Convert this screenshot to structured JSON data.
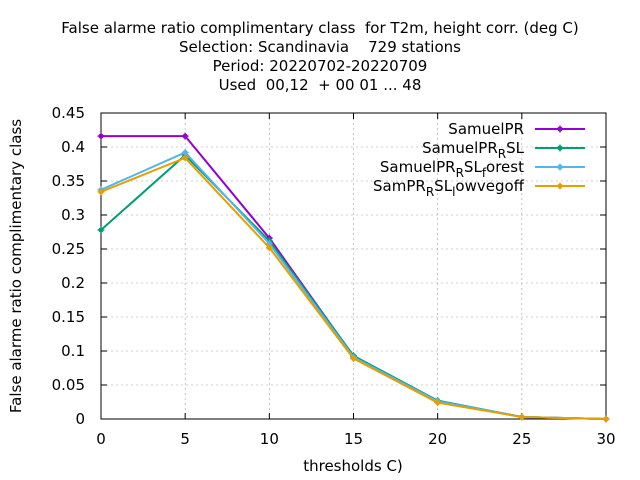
{
  "title": {
    "line1": "False alarme ratio complimentary class  for T2m, height corr. (deg C)",
    "line2": "Selection: Scandinavia    729 stations",
    "line3": "Period: 20220702-20220709",
    "line4": "Used  00,12  + 00 01 ... 48"
  },
  "chart_data": {
    "type": "line",
    "xlabel": "thresholds C)",
    "ylabel": "False alarme ratio complimentary class",
    "xlim": [
      0,
      30
    ],
    "ylim": [
      0,
      0.45
    ],
    "x_ticks": [
      0,
      5,
      10,
      15,
      20,
      25,
      30
    ],
    "y_ticks": [
      0,
      0.05,
      0.1,
      0.15,
      0.2,
      0.25,
      0.3,
      0.35,
      0.4,
      0.45
    ],
    "x_tick_labels": [
      "0",
      "5",
      "10",
      "15",
      "20",
      "25",
      "30"
    ],
    "y_tick_labels": [
      "0",
      "0.05",
      "0.1",
      "0.15",
      "0.2",
      "0.25",
      "0.3",
      "0.35",
      "0.4",
      "0.45"
    ],
    "grid": true,
    "legend_position": "top-right",
    "series": [
      {
        "name": "SamuelPR",
        "legend": {
          "base": "SamuelPR",
          "sub": "",
          "rest": "",
          "sub2": "",
          "rest2": ""
        },
        "color": "#9400d3",
        "x": [
          0,
          5,
          10,
          15,
          20,
          25,
          30
        ],
        "y": [
          0.416,
          0.416,
          0.266,
          0.092,
          0.026,
          0.003,
          0.0
        ]
      },
      {
        "name": "SamuelPR_RSL",
        "legend": {
          "base": "SamuelPR",
          "sub": "R",
          "rest": "SL",
          "sub2": "",
          "rest2": ""
        },
        "color": "#009e73",
        "x": [
          0,
          5,
          10,
          15,
          20,
          25,
          30
        ],
        "y": [
          0.278,
          0.388,
          0.262,
          0.093,
          0.027,
          0.003,
          0.0
        ]
      },
      {
        "name": "SamuelPR_RSL_forest",
        "legend": {
          "base": "SamuelPR",
          "sub": "R",
          "rest": "SL",
          "sub2": "f",
          "rest2": "orest"
        },
        "color": "#56b4e9",
        "x": [
          0,
          5,
          10,
          15,
          20,
          25,
          30
        ],
        "y": [
          0.337,
          0.392,
          0.258,
          0.091,
          0.026,
          0.003,
          0.0
        ]
      },
      {
        "name": "SamPR_RSL_lowvegoff",
        "legend": {
          "base": "SamPR",
          "sub": "R",
          "rest": "SL",
          "sub2": "l",
          "rest2": "owvegoff"
        },
        "color": "#e69f00",
        "x": [
          0,
          5,
          10,
          15,
          20,
          25,
          30
        ],
        "y": [
          0.334,
          0.384,
          0.252,
          0.089,
          0.024,
          0.003,
          0.0
        ]
      }
    ]
  }
}
